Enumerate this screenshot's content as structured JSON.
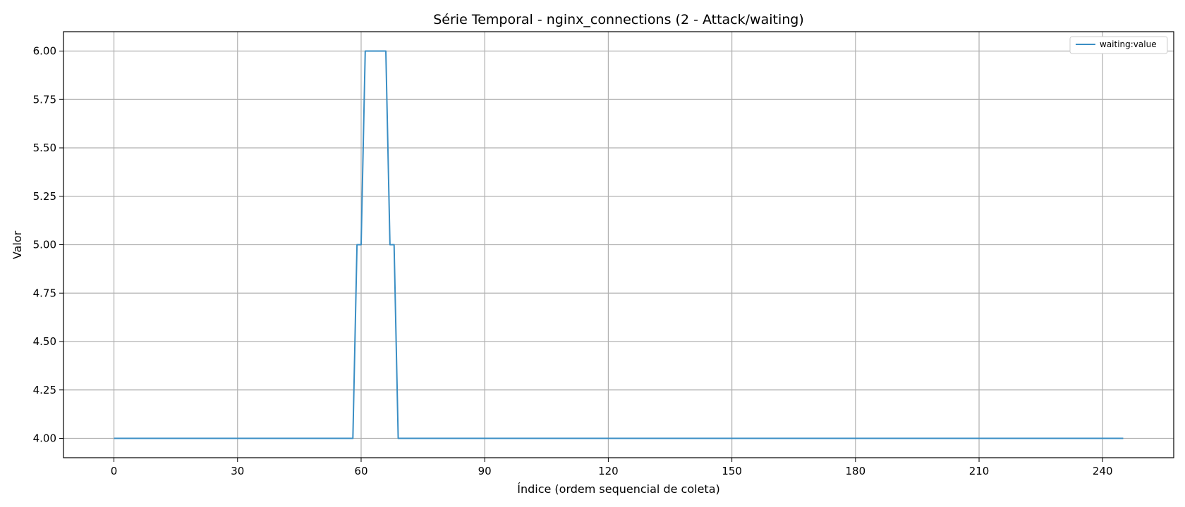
{
  "chart_data": {
    "type": "line",
    "title": "Série Temporal - nginx_connections (2 - Attack/waiting)",
    "xlabel": "Índice (ordem sequencial de coleta)",
    "ylabel": "Valor",
    "xlim": [
      -12.25,
      257.25
    ],
    "ylim": [
      3.9,
      6.1
    ],
    "xticks": [
      0,
      30,
      60,
      90,
      120,
      150,
      180,
      210,
      240
    ],
    "xtick_labels": [
      "0",
      "30",
      "60",
      "90",
      "120",
      "150",
      "180",
      "210",
      "240"
    ],
    "yticks": [
      4.0,
      4.25,
      4.5,
      4.75,
      5.0,
      5.25,
      5.5,
      5.75,
      6.0
    ],
    "ytick_labels": [
      "4.00",
      "4.25",
      "4.50",
      "4.75",
      "5.00",
      "5.25",
      "5.50",
      "5.75",
      "6.00"
    ],
    "grid": true,
    "legend_position": "top-right",
    "series": [
      {
        "name": "waiting:value",
        "color": "#3a8ec4",
        "x": [
          0,
          58,
          59,
          60,
          61,
          66,
          67,
          68,
          69,
          245
        ],
        "y": [
          4,
          4,
          5,
          5,
          6,
          6,
          5,
          5,
          4,
          4
        ]
      }
    ]
  }
}
